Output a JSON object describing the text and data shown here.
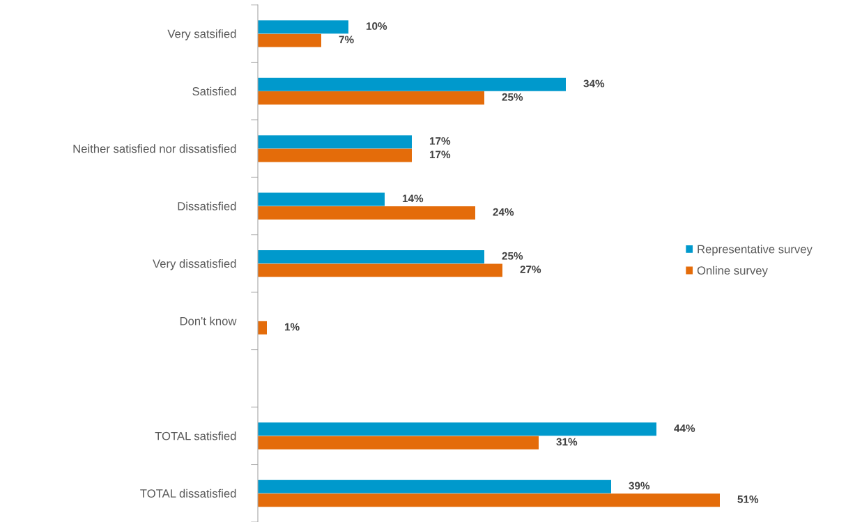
{
  "chart_data": {
    "type": "bar",
    "orientation": "horizontal",
    "categories": [
      "Very satsified",
      "Satisfied",
      "Neither satisfied nor dissatisfied",
      "Dissatisfied",
      "Very dissatisfied",
      "Don't know",
      null,
      "TOTAL satisfied",
      "TOTAL dissatisfied"
    ],
    "series": [
      {
        "name": "Representative survey",
        "color": "#0099cc",
        "values": [
          10,
          34,
          17,
          14,
          25,
          null,
          null,
          44,
          39
        ],
        "value_labels": [
          "10%",
          "34%",
          "17%",
          "14%",
          "25%",
          null,
          null,
          "44%",
          "39%"
        ]
      },
      {
        "name": "Online survey",
        "color": "#e46c0a",
        "values": [
          7,
          25,
          17,
          24,
          27,
          1,
          null,
          31,
          51
        ],
        "value_labels": [
          "7%",
          "25%",
          "17%",
          "24%",
          "27%",
          "1%",
          null,
          "31%",
          "51%"
        ]
      }
    ],
    "legend": "right",
    "grid": false
  }
}
